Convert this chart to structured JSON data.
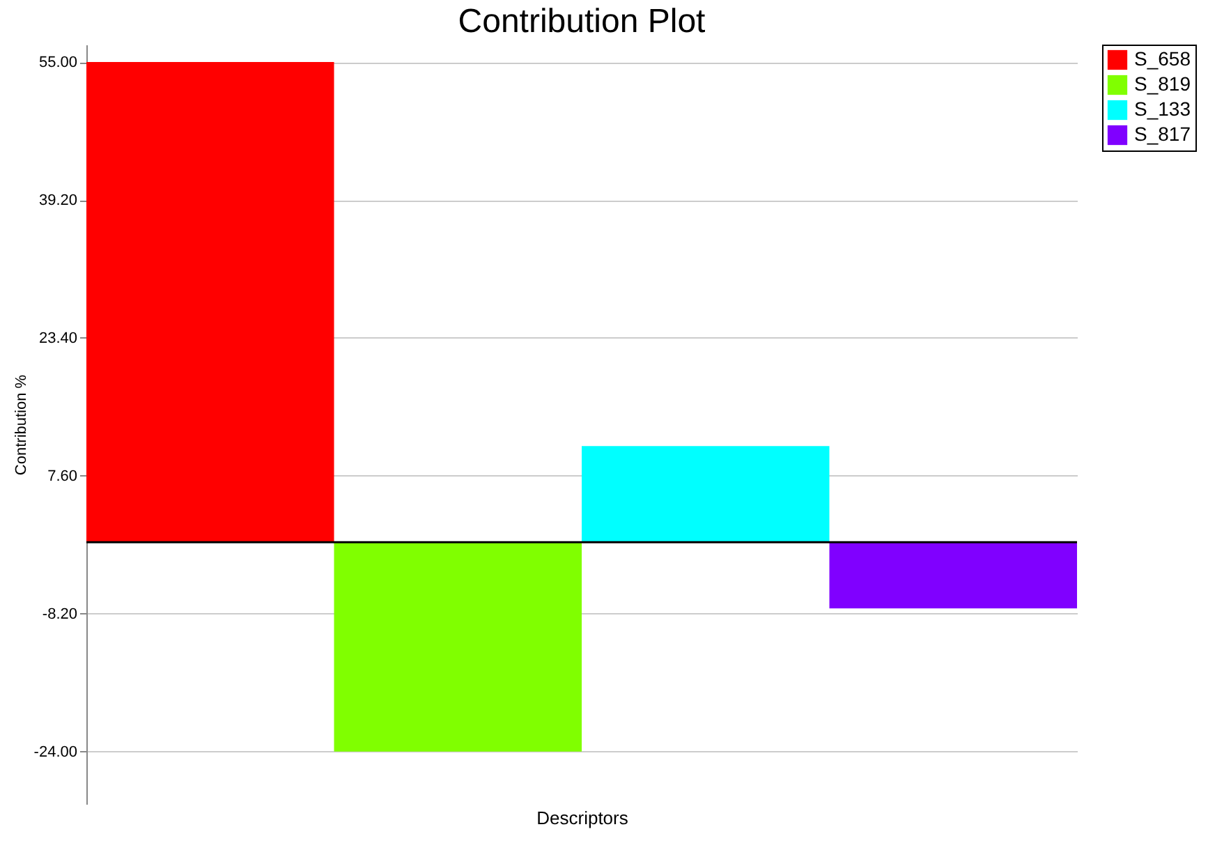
{
  "chart_data": {
    "type": "bar",
    "title": "Contribution Plot",
    "xlabel": "Descriptors",
    "ylabel": "Contribution %",
    "categories": [
      null,
      null,
      null,
      null
    ],
    "series": [
      {
        "name": "S_658",
        "color": "#ff0000",
        "values": [
          55,
          null,
          null,
          null
        ]
      },
      {
        "name": "S_819",
        "color": "#80ff00",
        "values": [
          null,
          -24,
          null,
          null
        ]
      },
      {
        "name": "S_133",
        "color": "#00ffff",
        "values": [
          null,
          null,
          11,
          null
        ]
      },
      {
        "name": "S_817",
        "color": "#8000ff",
        "values": [
          null,
          null,
          null,
          -7.6
        ]
      }
    ],
    "ylim": [
      -30,
      57
    ],
    "yticks": [
      {
        "value": 55,
        "label": "55.00"
      },
      {
        "value": 39.2,
        "label": "39.20"
      },
      {
        "value": 23.4,
        "label": "23.40"
      },
      {
        "value": 7.6,
        "label": "7.60"
      },
      {
        "value": -8.2,
        "label": "-8.20"
      },
      {
        "value": -24,
        "label": "-24.00"
      }
    ],
    "ref_lines": [
      {
        "axis": "y",
        "value": 0,
        "color": "#000000"
      }
    ],
    "grid": "y",
    "legend": "right",
    "tick_labels": "y"
  }
}
